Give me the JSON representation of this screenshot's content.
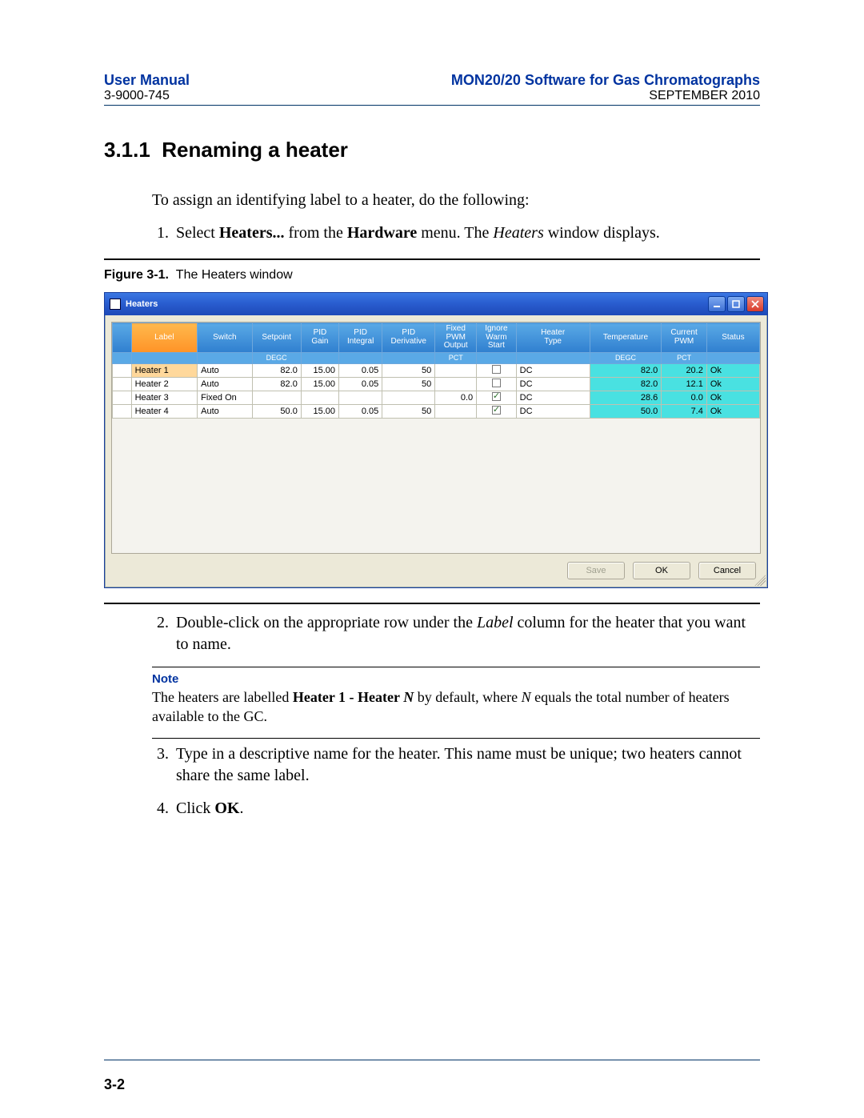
{
  "header": {
    "left_title": "User Manual",
    "left_sub": "3-9000-745",
    "right_title": "MON20/20 Software for Gas Chromatographs",
    "right_sub": "SEPTEMBER 2010"
  },
  "section": {
    "number": "3.1.1",
    "title": "Renaming a heater",
    "intro": "To assign an identifying label to a heater, do the following:",
    "step1_pre": "Select ",
    "step1_b1": "Heaters...",
    "step1_mid": " from the ",
    "step1_b2": "Hardware",
    "step1_post": " menu.  The ",
    "step1_i": "Heaters",
    "step1_end": " window displays.",
    "figure_label": "Figure 3-1.",
    "figure_caption": "The Heaters window",
    "step2_pre": "Double-click on the appropriate row under the ",
    "step2_i": "Label",
    "step2_post": " column for the heater that you want to name.",
    "note_label": "Note",
    "note_pre": "The heaters are labelled ",
    "note_b": "Heater 1 - Heater ",
    "note_iN": "N",
    "note_mid": " by default, where ",
    "note_iN2": "N",
    "note_post": " equals the total number of heaters available to the GC.",
    "step3": "Type in a descriptive name for the heater.  This name must be unique; two heaters cannot share the same label.",
    "step4_pre": "Click ",
    "step4_b": "OK",
    "step4_post": "."
  },
  "footer": {
    "page": "3-2"
  },
  "window": {
    "title": "Heaters",
    "columns": [
      "",
      "Label",
      "Switch",
      "Setpoint",
      "PID Gain",
      "PID Integral",
      "PID Derivative",
      "Fixed PWM Output",
      "Ignore Warm Start",
      "Heater Type",
      "Temperature",
      "Current PWM",
      "Status"
    ],
    "units": [
      "",
      "",
      "",
      "DEGC",
      "",
      "",
      "",
      "PCT",
      "",
      "",
      "DEGC",
      "PCT",
      ""
    ],
    "rows": [
      {
        "n": "1",
        "label": "Heater 1",
        "switch": "Auto",
        "setpoint": "82.0",
        "gain": "15.00",
        "integ": "0.05",
        "deriv": "50",
        "fpo": "",
        "iws": false,
        "type": "DC",
        "temp": "82.0",
        "cpwm": "20.2",
        "status": "Ok"
      },
      {
        "n": "2",
        "label": "Heater 2",
        "switch": "Auto",
        "setpoint": "82.0",
        "gain": "15.00",
        "integ": "0.05",
        "deriv": "50",
        "fpo": "",
        "iws": false,
        "type": "DC",
        "temp": "82.0",
        "cpwm": "12.1",
        "status": "Ok"
      },
      {
        "n": "3",
        "label": "Heater 3",
        "switch": "Fixed On",
        "setpoint": "",
        "gain": "",
        "integ": "",
        "deriv": "",
        "fpo": "0.0",
        "iws": true,
        "type": "DC",
        "temp": "28.6",
        "cpwm": "0.0",
        "status": "Ok"
      },
      {
        "n": "4",
        "label": "Heater 4",
        "switch": "Auto",
        "setpoint": "50.0",
        "gain": "15.00",
        "integ": "0.05",
        "deriv": "50",
        "fpo": "",
        "iws": true,
        "type": "DC",
        "temp": "50.0",
        "cpwm": "7.4",
        "status": "Ok"
      }
    ],
    "buttons": {
      "save": "Save",
      "ok": "OK",
      "cancel": "Cancel"
    }
  }
}
